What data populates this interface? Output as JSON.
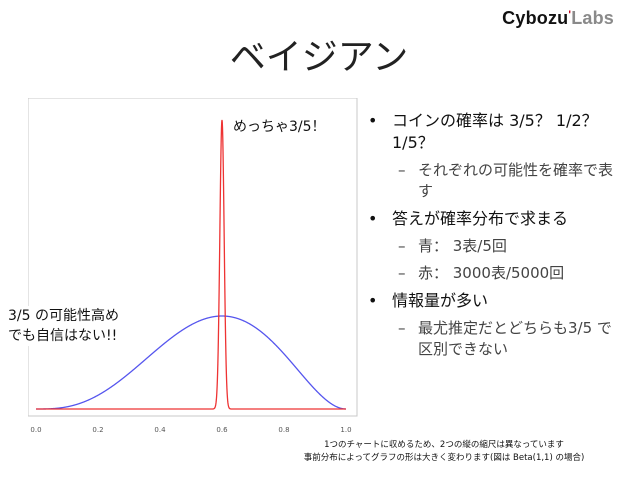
{
  "header": {
    "logo_main": "Cybozu",
    "logo_mark": "'",
    "logo_sub": "Labs"
  },
  "slide": {
    "title": "ベイジアン"
  },
  "annotations": {
    "peak_note": "めっちゃ3/5！",
    "left_note_line1": "3/5 の可能性高め",
    "left_note_line2": "でも自信はない!!"
  },
  "bullets": [
    {
      "text": "コインの確率は 3/5？ 1/2？ 1/5？",
      "sub": [
        "それぞれの可能性を確率で表す"
      ]
    },
    {
      "text": "答えが確率分布で求まる",
      "sub": [
        "青： 3表/5回",
        "赤： 3000表/5000回"
      ]
    },
    {
      "text": "情報量が多い",
      "sub": [
        "最尤推定だとどちらも3/5 で区別できない"
      ]
    }
  ],
  "bullet_glyph": "•",
  "sub_glyph": "–",
  "footnote": {
    "line1": "1つのチャートに収めるため、2つの縦の縮尺は異なっています",
    "line2": "事前分布によってグラフの形は大きく変わります(図は Beta(1,1) の場合)"
  },
  "chart_data": {
    "type": "line",
    "xlim": [
      0.0,
      1.0
    ],
    "xticks": [
      "0.0",
      "0.2",
      "0.4",
      "0.6",
      "0.8",
      "1.0"
    ],
    "grid": false,
    "series": [
      {
        "color": "#5555ee",
        "distribution": "Beta(4,3)",
        "mode": 0.6
      },
      {
        "color": "#ee3333",
        "distribution": "Beta(3001,2001)",
        "mode": 0.6
      }
    ]
  }
}
